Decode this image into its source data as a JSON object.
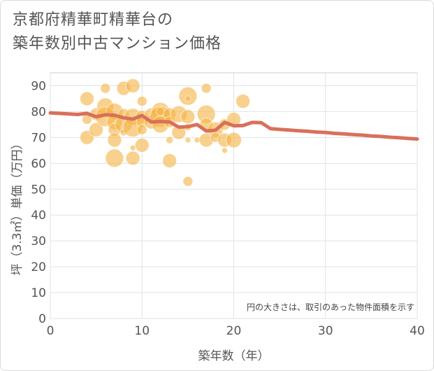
{
  "title_lines": [
    "京都府精華町精華台の",
    "築年数別中古マンション価格"
  ],
  "chart_data": {
    "type": "scatter",
    "title": "京都府精華町精華台の築年数別中古マンション価格",
    "xlabel": "築年数（年）",
    "ylabel": "坪（3.3㎡）単価（万円）",
    "xlim": [
      0,
      40
    ],
    "ylim": [
      0,
      95
    ],
    "xticks": [
      "0",
      "10",
      "20",
      "30",
      "40"
    ],
    "yticks": [
      "0",
      "10",
      "20",
      "30",
      "40",
      "50",
      "60",
      "70",
      "80",
      "90"
    ],
    "grid": true,
    "note": "円の大きさは、取引のあった物件面積を示す",
    "bubble_color": "#f5b342",
    "line_color": "#d9705a",
    "bubbles": [
      {
        "x": 4,
        "y": 85,
        "size": 10
      },
      {
        "x": 4,
        "y": 77,
        "size": 7
      },
      {
        "x": 4,
        "y": 70,
        "size": 10
      },
      {
        "x": 5,
        "y": 79,
        "size": 9
      },
      {
        "x": 5,
        "y": 73,
        "size": 10
      },
      {
        "x": 6,
        "y": 89,
        "size": 7
      },
      {
        "x": 6,
        "y": 82,
        "size": 12
      },
      {
        "x": 6,
        "y": 78,
        "size": 14
      },
      {
        "x": 7,
        "y": 80,
        "size": 12
      },
      {
        "x": 7,
        "y": 76,
        "size": 11
      },
      {
        "x": 7,
        "y": 73,
        "size": 9
      },
      {
        "x": 7,
        "y": 69,
        "size": 10
      },
      {
        "x": 7,
        "y": 62,
        "size": 13
      },
      {
        "x": 8,
        "y": 89,
        "size": 10
      },
      {
        "x": 8,
        "y": 79,
        "size": 8
      },
      {
        "x": 8,
        "y": 75,
        "size": 12
      },
      {
        "x": 8,
        "y": 72,
        "size": 5
      },
      {
        "x": 9,
        "y": 90,
        "size": 10
      },
      {
        "x": 9,
        "y": 78,
        "size": 12
      },
      {
        "x": 9,
        "y": 74,
        "size": 14
      },
      {
        "x": 9,
        "y": 66,
        "size": 4
      },
      {
        "x": 9,
        "y": 62,
        "size": 10
      },
      {
        "x": 10,
        "y": 84,
        "size": 7
      },
      {
        "x": 10,
        "y": 78,
        "size": 9
      },
      {
        "x": 10,
        "y": 76,
        "size": 8
      },
      {
        "x": 10,
        "y": 73,
        "size": 7
      },
      {
        "x": 10,
        "y": 67,
        "size": 10
      },
      {
        "x": 11,
        "y": 79,
        "size": 9
      },
      {
        "x": 11,
        "y": 76,
        "size": 10
      },
      {
        "x": 12,
        "y": 80,
        "size": 13
      },
      {
        "x": 12,
        "y": 78,
        "size": 15
      },
      {
        "x": 12,
        "y": 75,
        "size": 12
      },
      {
        "x": 12,
        "y": 80,
        "size": 6
      },
      {
        "x": 13,
        "y": 79,
        "size": 9
      },
      {
        "x": 13,
        "y": 76,
        "size": 8
      },
      {
        "x": 13,
        "y": 69,
        "size": 5
      },
      {
        "x": 13,
        "y": 61,
        "size": 10
      },
      {
        "x": 14,
        "y": 79,
        "size": 12
      },
      {
        "x": 14,
        "y": 72,
        "size": 10
      },
      {
        "x": 15,
        "y": 86,
        "size": 13
      },
      {
        "x": 15,
        "y": 85,
        "size": 4
      },
      {
        "x": 15,
        "y": 78,
        "size": 10
      },
      {
        "x": 15,
        "y": 74,
        "size": 5
      },
      {
        "x": 15,
        "y": 69,
        "size": 4
      },
      {
        "x": 15,
        "y": 53,
        "size": 7
      },
      {
        "x": 16,
        "y": 69,
        "size": 4
      },
      {
        "x": 17,
        "y": 89,
        "size": 7
      },
      {
        "x": 17,
        "y": 79,
        "size": 13
      },
      {
        "x": 17,
        "y": 75,
        "size": 9
      },
      {
        "x": 17,
        "y": 69,
        "size": 10
      },
      {
        "x": 18,
        "y": 73,
        "size": 11
      },
      {
        "x": 18,
        "y": 70,
        "size": 7
      },
      {
        "x": 19,
        "y": 75,
        "size": 8
      },
      {
        "x": 19,
        "y": 69,
        "size": 10
      },
      {
        "x": 19,
        "y": 65,
        "size": 4
      },
      {
        "x": 20,
        "y": 77,
        "size": 10
      },
      {
        "x": 20,
        "y": 69,
        "size": 11
      },
      {
        "x": 21,
        "y": 84,
        "size": 10
      }
    ],
    "line": {
      "x": [
        0,
        1,
        2,
        3,
        4,
        5,
        6,
        7,
        8,
        9,
        10,
        11,
        12,
        13,
        14,
        15,
        16,
        17,
        18,
        19,
        20,
        21,
        22,
        23,
        24,
        25,
        26,
        27,
        28,
        29,
        30,
        31,
        32,
        33,
        34,
        35,
        36,
        37,
        38,
        39,
        40
      ],
      "y": [
        79.5,
        79.3,
        79.1,
        78.9,
        79.3,
        78.0,
        78.8,
        78.6,
        77.6,
        77.1,
        78.5,
        76.0,
        76.2,
        76.0,
        74.0,
        74.2,
        75.0,
        72.5,
        72.8,
        75.8,
        74.5,
        74.6,
        75.8,
        75.7,
        73.4,
        73.1,
        72.9,
        72.6,
        72.4,
        72.1,
        71.9,
        71.6,
        71.4,
        71.1,
        70.9,
        70.6,
        70.4,
        70.1,
        69.9,
        69.6,
        69.4
      ]
    }
  }
}
